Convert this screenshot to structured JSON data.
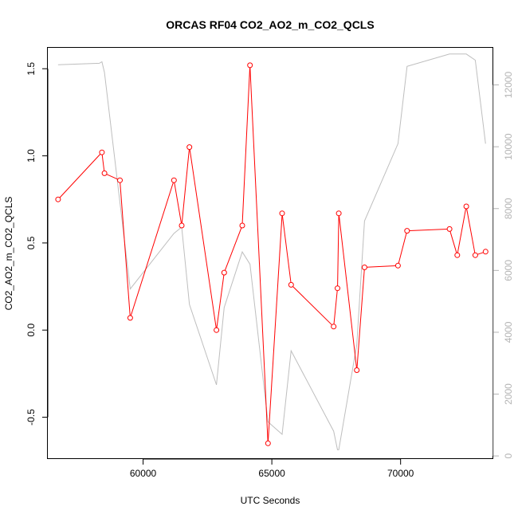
{
  "chart_data": {
    "type": "line",
    "title": "ORCAS RF04 CO2_AO2_m_CO2_QCLS",
    "xlabel": "UTC Seconds",
    "ylabel": "CO2_AO2_m_CO2_QCLS",
    "xlim": [
      56300,
      73600
    ],
    "ylim": [
      -0.74,
      1.62
    ],
    "y2lim": [
      -100,
      13200
    ],
    "x_ticks": [
      60000,
      65000,
      70000
    ],
    "y_ticks": [
      -0.5,
      0.0,
      0.5,
      1.0,
      1.5
    ],
    "y2_ticks": [
      0,
      2000,
      4000,
      6000,
      8000,
      10000,
      12000
    ],
    "x_tick_labels": [
      "60000",
      "65000",
      "70000"
    ],
    "y_tick_labels": [
      "-0.5",
      "0.0",
      "0.5",
      "1.0",
      "1.5"
    ],
    "y2_tick_labels": [
      "0",
      "2000",
      "4000",
      "6000",
      "8000",
      "10000",
      "12000"
    ],
    "grid": false,
    "series": [
      {
        "color": "#ff0000",
        "axis": "left",
        "markers": "open-circle",
        "x": [
          56700,
          58400,
          58500,
          59100,
          59500,
          61200,
          61500,
          61800,
          62850,
          63150,
          63850,
          64150,
          64850,
          65400,
          65750,
          67400,
          67550,
          67600,
          68300,
          68600,
          69900,
          70250,
          71900,
          72200,
          72550,
          72900,
          73300
        ],
        "y": [
          0.75,
          1.02,
          0.9,
          0.86,
          0.07,
          0.86,
          0.6,
          1.05,
          0.0,
          0.33,
          0.6,
          1.52,
          -0.65,
          0.67,
          0.26,
          0.02,
          0.24,
          0.67,
          -0.23,
          0.36,
          0.37,
          0.57,
          0.58,
          0.43,
          0.71,
          0.43,
          0.45
        ]
      },
      {
        "color": "#bebebe",
        "axis": "right",
        "markers": "none",
        "x": [
          56700,
          58300,
          58400,
          58500,
          59500,
          61200,
          61500,
          61800,
          62850,
          63150,
          63850,
          64150,
          64850,
          65400,
          65750,
          67400,
          67550,
          67600,
          68300,
          68600,
          69900,
          70250,
          71900,
          72200,
          72550,
          72900,
          73300
        ],
        "y": [
          12650,
          12700,
          12750,
          12400,
          5400,
          7200,
          7400,
          4900,
          2300,
          4800,
          6600,
          6200,
          1100,
          700,
          3400,
          800,
          200,
          200,
          3600,
          7600,
          10100,
          12600,
          13000,
          13000,
          13000,
          12800,
          10100
        ]
      }
    ]
  }
}
